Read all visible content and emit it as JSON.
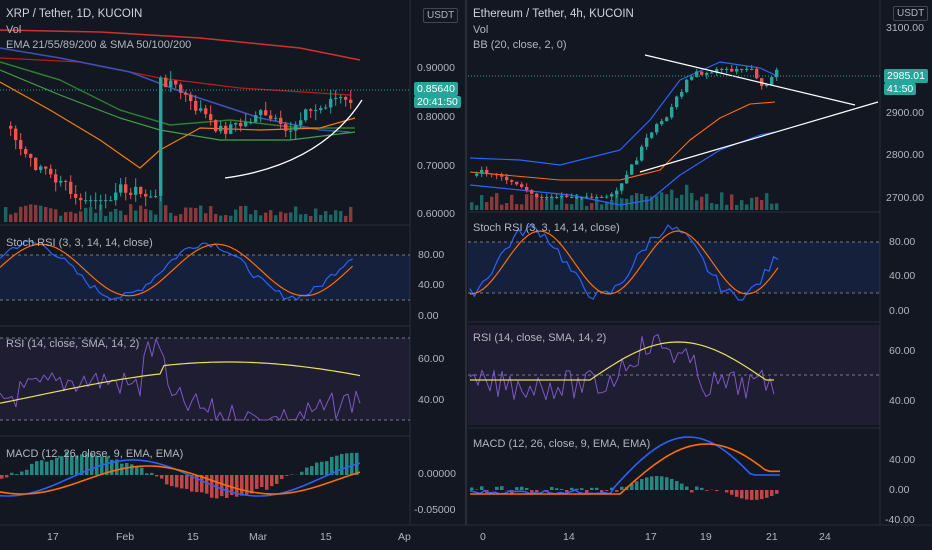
{
  "left": {
    "title": "XRP / Tether, 1D, KUCOIN",
    "vol_label": "Vol",
    "ema_label": "EMA 21/55/89/200 & SMA 50/100/200",
    "currency": "USDT",
    "price_ticks": [
      "0.90000",
      "0.80000",
      "0.70000",
      "0.60000"
    ],
    "last_price": "0.85640",
    "countdown": "20:41:50",
    "stoch_label": "Stoch RSI (3, 3, 14, 14, close)",
    "stoch_ticks": [
      "80.00",
      "40.00",
      "0.00"
    ],
    "rsi_label": "RSI (14, close, SMA, 14, 2)",
    "rsi_ticks": [
      "60.00",
      "40.00"
    ],
    "macd_label": "MACD (12, 26, close, 9, EMA, EMA)",
    "macd_ticks": [
      "0.00000",
      "-0.05000"
    ],
    "time_ticks": [
      "17",
      "Feb",
      "15",
      "Mar",
      "15",
      "Ap"
    ]
  },
  "right": {
    "title": "Ethereum / Tether, 4h, KUCOIN",
    "vol_label": "Vol",
    "bb_label": "BB (20, close, 2, 0)",
    "currency": "USDT",
    "price_ticks": [
      "3100.00",
      "2900.00",
      "2800.00",
      "2700.00"
    ],
    "last_price": "2985.01",
    "countdown": "41:50",
    "stoch_label": "Stoch RSI (3, 3, 14, 14, close)",
    "stoch_ticks": [
      "80.00",
      "40.00",
      "0.00"
    ],
    "rsi_label": "RSI (14, close, SMA, 14, 2)",
    "rsi_ticks": [
      "60.00",
      "40.00"
    ],
    "macd_label": "MACD (12, 26, close, 9, EMA, EMA)",
    "macd_ticks": [
      "40.00",
      "0.00",
      "-40.00"
    ],
    "time_ticks": [
      "0",
      "14",
      "17",
      "19",
      "21",
      "24"
    ]
  },
  "colors": {
    "background": "#131722",
    "up": "#26a69a",
    "down": "#ef5350",
    "stoch_k": "#2962ff",
    "stoch_d": "#ff6d00",
    "rsi": "#7e57c2",
    "rsi_ma": "#e8e05a"
  }
}
